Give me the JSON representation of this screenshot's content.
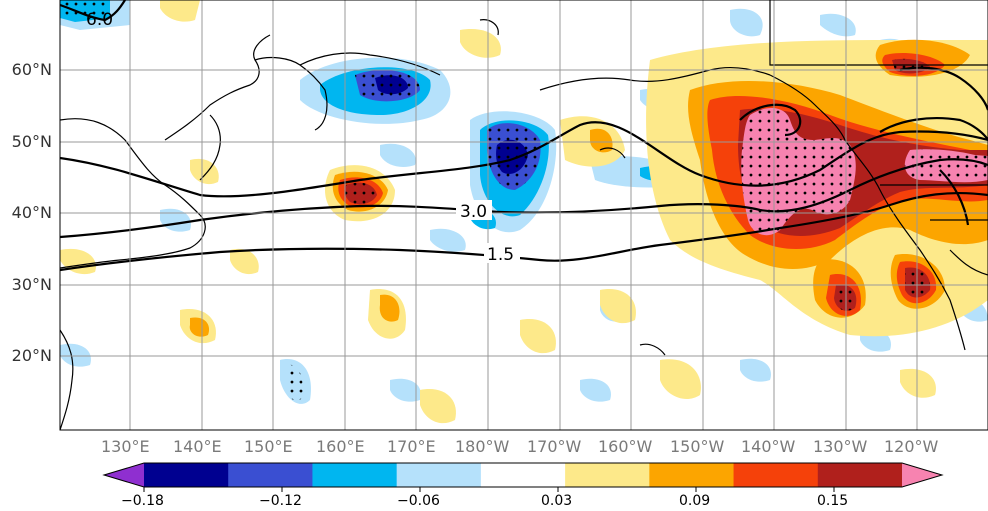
{
  "map": {
    "lat_labels": [
      "60°N",
      "50°N",
      "40°N",
      "30°N",
      "20°N"
    ],
    "lon_labels": [
      "130°E",
      "140°E",
      "150°E",
      "160°E",
      "170°E",
      "180°W",
      "170°W",
      "160°W",
      "150°W",
      "140°W",
      "130°W",
      "120°W"
    ],
    "contour_labels": [
      "6.0",
      "3.0",
      "1.5"
    ]
  },
  "colorbar": {
    "colors": [
      "#8f2fd0",
      "#000090",
      "#3a4fd2",
      "#00b6f0",
      "#b5e1fb",
      "#ffffff",
      "#fde98a",
      "#fca500",
      "#f5410a",
      "#b0201c",
      "#f783b0"
    ],
    "tick_labels": [
      "−0.18",
      "−0.12",
      "−0.06",
      "0.03",
      "0.09",
      "0.15"
    ]
  },
  "colors": {
    "land_outline": "#000000",
    "grid": "#999999"
  }
}
